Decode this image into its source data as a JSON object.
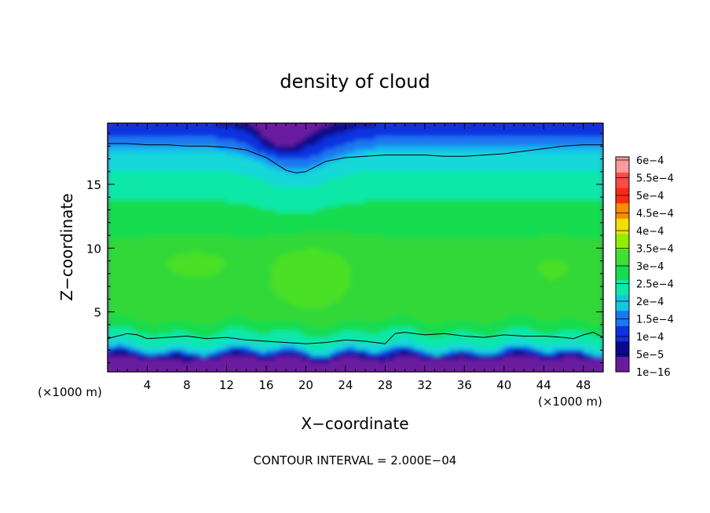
{
  "chart_data": {
    "type": "heatmap",
    "title": "density of cloud",
    "xlabel": "X−coordinate",
    "ylabel": "Z−coordinate",
    "x_unit_left": "(×1000 m)",
    "x_unit_right": "(×1000 m)",
    "xlim": [
      0,
      50
    ],
    "ylim": [
      0.3,
      19.8
    ],
    "x_ticks": [
      "4",
      "8",
      "12",
      "16",
      "20",
      "24",
      "28",
      "32",
      "36",
      "40",
      "44",
      "48"
    ],
    "y_ticks": [
      "5",
      "10",
      "15"
    ],
    "footer": "CONTOUR INTERVAL = 2.000E−04",
    "colorbar": {
      "labels": [
        "1e−16",
        "5e−5",
        "1e−4",
        "1.5e−4",
        "2e−4",
        "2.5e−4",
        "3e−4",
        "3.5e−4",
        "4e−4",
        "4.5e−4",
        "5e−4",
        "5.5e−4",
        "6e−4"
      ],
      "colors": [
        "#6a1aa0",
        "#0a0a8a",
        "#1030e0",
        "#1a78f0",
        "#12c8e0",
        "#10e8a8",
        "#18dc50",
        "#40e030",
        "#8ef000",
        "#f0e000",
        "#ff8c00",
        "#ff2a10",
        "#ff4a4a",
        "#ff9a9a"
      ]
    },
    "levels": [
      2e-05,
      8e-05,
      0.00012,
      0.00016,
      0.0002,
      0.00023,
      0.00026,
      0.0003,
      0.00033,
      0.00036,
      0.0004,
      0.00045
    ],
    "level_colors": [
      "#6a1aa0",
      "#0a0a8a",
      "#1030e0",
      "#1a78f0",
      "#12b8f0",
      "#12d8d8",
      "#10e8a8",
      "#18dc50",
      "#30d838",
      "#48e028",
      "#7aec10",
      "#8ef000"
    ],
    "contour_lines": [
      {
        "value": 0.0002,
        "x": [
          0,
          2,
          4,
          6,
          8,
          10,
          12,
          14,
          16,
          17,
          18,
          19,
          20,
          21,
          22,
          24,
          26,
          28,
          30,
          32,
          34,
          36,
          38,
          40,
          42,
          44,
          46,
          48,
          50
        ],
        "z": [
          18.2,
          18.2,
          18.1,
          18.1,
          18.0,
          18.0,
          17.9,
          17.7,
          17.1,
          16.6,
          16.1,
          15.9,
          16.0,
          16.4,
          16.8,
          17.1,
          17.2,
          17.3,
          17.3,
          17.3,
          17.2,
          17.2,
          17.3,
          17.4,
          17.6,
          17.8,
          18.0,
          18.1,
          18.1
        ]
      },
      {
        "value": 0.0002,
        "x": [
          0,
          1,
          2,
          3,
          4,
          6,
          8,
          10,
          12,
          14,
          16,
          18,
          20,
          22,
          24,
          26,
          27,
          28,
          29,
          30,
          32,
          34,
          36,
          38,
          40,
          42,
          44,
          46,
          47,
          48,
          49,
          50
        ],
        "z": [
          2.9,
          3.1,
          3.3,
          3.2,
          2.9,
          3.0,
          3.1,
          2.9,
          3.0,
          2.8,
          2.7,
          2.6,
          2.5,
          2.6,
          2.8,
          2.7,
          2.6,
          2.5,
          3.3,
          3.4,
          3.2,
          3.3,
          3.1,
          3.0,
          3.2,
          3.1,
          3.1,
          3.0,
          2.9,
          3.2,
          3.4,
          3.0
        ]
      }
    ]
  }
}
